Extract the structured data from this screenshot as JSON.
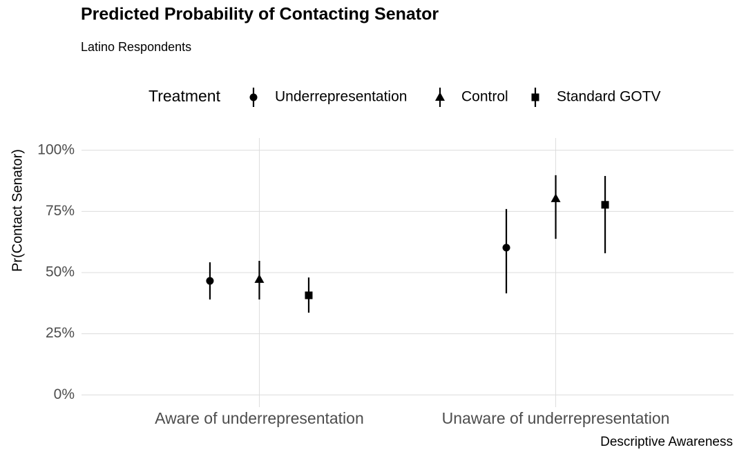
{
  "chart_data": {
    "type": "pointrange",
    "title": "Predicted Probability of Contacting Senator",
    "subtitle": "Latino Respondents",
    "x_label": "Descriptive Awareness",
    "y_label": "Pr(Contact Senator)",
    "legend_title": "Treatment",
    "legend_position": "top",
    "grid": true,
    "categories": [
      "Aware of underrepresentation",
      "Unaware of underrepresentation"
    ],
    "series": [
      {
        "name": "Underrepresentation",
        "color": "#000000",
        "shape": "circle",
        "values": [
          46.6,
          60.2
        ],
        "lower": [
          39.0,
          41.5
        ],
        "upper": [
          54.2,
          76.0
        ]
      },
      {
        "name": "Control",
        "color": "#000000",
        "shape": "triangle",
        "values": [
          47.2,
          80.2
        ],
        "lower": [
          39.0,
          63.8
        ],
        "upper": [
          54.8,
          89.8
        ]
      },
      {
        "name": "Standard GOTV",
        "color": "#000000",
        "shape": "square",
        "values": [
          40.7,
          77.7
        ],
        "lower": [
          33.6,
          57.9
        ],
        "upper": [
          48.0,
          89.5
        ]
      }
    ],
    "ylim": [
      -5,
      105
    ],
    "yticks": [
      {
        "value": 0,
        "label": "0%"
      },
      {
        "value": 25,
        "label": "25%"
      },
      {
        "value": 50,
        "label": "50%"
      },
      {
        "value": 75,
        "label": "75%"
      },
      {
        "value": 100,
        "label": "100%"
      }
    ]
  }
}
